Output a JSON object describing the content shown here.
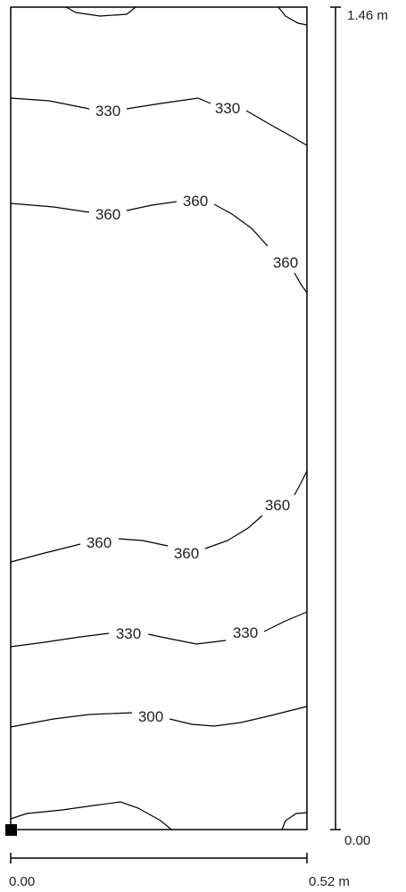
{
  "axes": {
    "x": {
      "start_label": "0.00",
      "end_label": "0.52 m"
    },
    "y": {
      "start_label": "0.00",
      "end_label": "1.46 m"
    }
  },
  "contour_labels": [
    {
      "id": "top-330-a",
      "text": "330"
    },
    {
      "id": "top-330-b",
      "text": "330"
    },
    {
      "id": "top-360-a",
      "text": "360"
    },
    {
      "id": "top-360-b",
      "text": "360"
    },
    {
      "id": "top-360-c",
      "text": "360"
    },
    {
      "id": "bot-360-a",
      "text": "360"
    },
    {
      "id": "bot-360-b",
      "text": "360"
    },
    {
      "id": "bot-360-c",
      "text": "360"
    },
    {
      "id": "bot-330-a",
      "text": "330"
    },
    {
      "id": "bot-330-b",
      "text": "330"
    },
    {
      "id": "bot-300",
      "text": "300"
    }
  ],
  "colors": {
    "line": "#000000",
    "label": "#222222",
    "background": "#ffffff"
  }
}
